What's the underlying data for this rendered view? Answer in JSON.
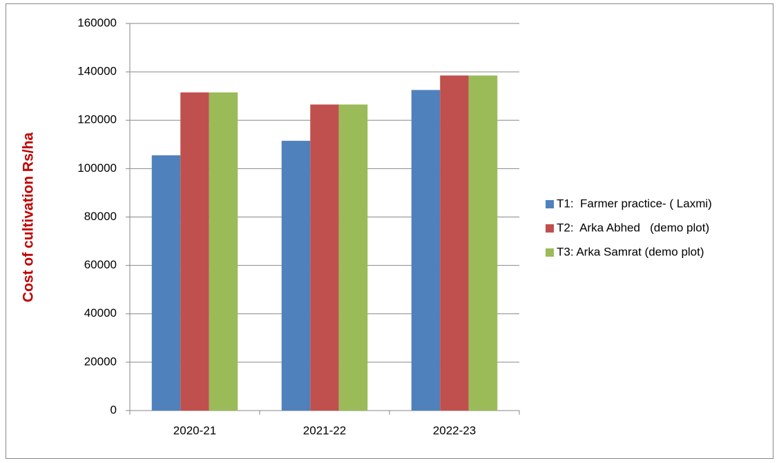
{
  "chart_data": {
    "type": "bar",
    "y_label": "Cost of cultivation Rs/ha",
    "categories": [
      "2020-21",
      "2021-22",
      "2022-23"
    ],
    "series": [
      {
        "name": "T1:  Farmer practice- ( Laxmi)",
        "color": "#4f81bd",
        "values": [
          105500,
          111500,
          132500
        ]
      },
      {
        "name": "T2:  Arka Abhed   (demo plot)",
        "color": "#c0504d",
        "values": [
          131500,
          126500,
          138500
        ]
      },
      {
        "name": "T3: Arka Samrat (demo plot)",
        "color": "#9bbb59",
        "values": [
          131500,
          126500,
          138500
        ]
      }
    ],
    "ylim": [
      0,
      160000
    ],
    "yticks": [
      0,
      20000,
      40000,
      60000,
      80000,
      100000,
      120000,
      140000,
      160000
    ],
    "grid": true,
    "legend": "right"
  }
}
